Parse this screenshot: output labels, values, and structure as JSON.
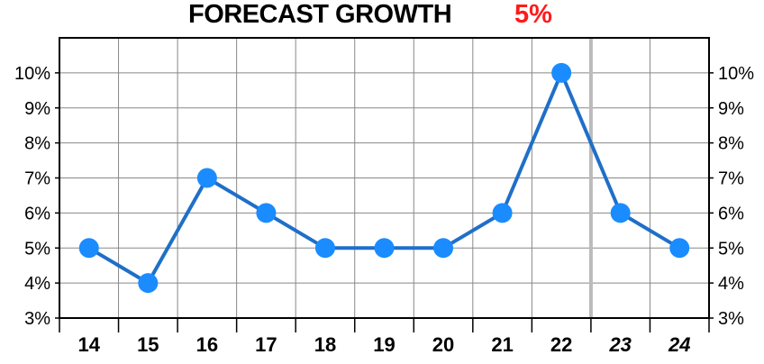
{
  "title": {
    "text": "FORECAST GROWTH",
    "value": "5%"
  },
  "colors": {
    "line": "#1f6fc8",
    "marker": "#1a8cff",
    "title_value": "#ff1a1a",
    "grid": "#888888",
    "forecast_divider": "#bbbbbb"
  },
  "chart_data": {
    "type": "line",
    "title": "FORECAST GROWTH",
    "categories": [
      "14",
      "15",
      "16",
      "17",
      "18",
      "19",
      "20",
      "21",
      "22",
      "23",
      "24"
    ],
    "forecast_categories": [
      "23",
      "24"
    ],
    "series": [
      {
        "values": [
          5,
          4,
          7,
          6,
          5,
          5,
          5,
          6,
          10,
          6,
          5
        ]
      }
    ],
    "ylim": [
      3,
      11
    ],
    "yticks": [
      3,
      4,
      5,
      6,
      7,
      8,
      9,
      10
    ],
    "ytick_labels": [
      "3%",
      "4%",
      "5%",
      "6%",
      "7%",
      "8%",
      "9%",
      "10%"
    ],
    "y_axis_both_sides": true,
    "grid": true,
    "legend": "none"
  }
}
